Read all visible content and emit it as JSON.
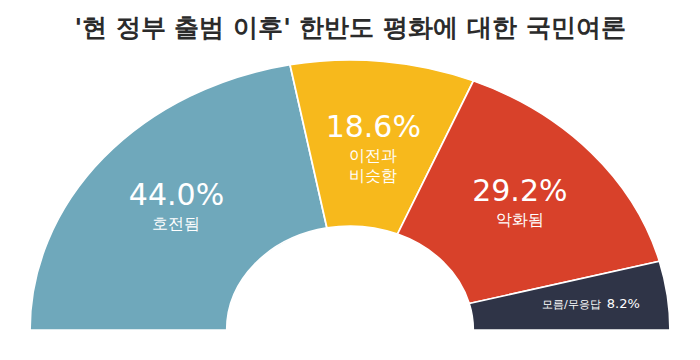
{
  "chart_data": {
    "type": "pie",
    "title": "'현 정부 출범 이후' 한반도 평화에 대한 국민여론",
    "categories": [
      "호전됨",
      "이전과 비슷함",
      "악화됨",
      "모름/무응답"
    ],
    "values": [
      44.0,
      18.6,
      29.2,
      8.2
    ],
    "value_labels": [
      "44.0%",
      "18.6%",
      "29.2%",
      "8.2%"
    ],
    "colors": [
      "#6fa8bb",
      "#f7b91c",
      "#d8412a",
      "#2f3447"
    ],
    "data_labels": true
  }
}
